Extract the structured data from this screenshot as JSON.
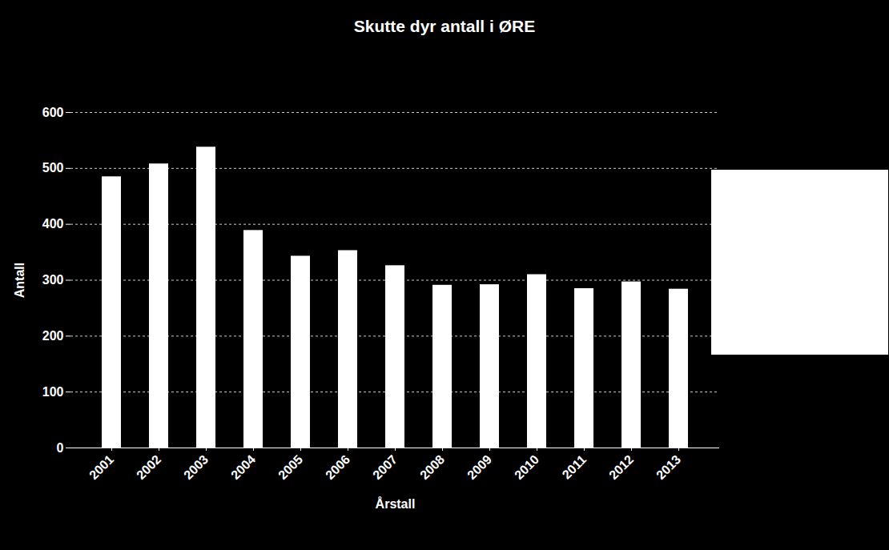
{
  "chart_data": {
    "type": "bar",
    "title": "Skutte dyr antall i ØRE",
    "x_label": "Årstall",
    "y_label": "Antall",
    "categories": [
      "2001",
      "2002",
      "2003",
      "2004",
      "2005",
      "2006",
      "2007",
      "2008",
      "2009",
      "2010",
      "2011",
      "2012",
      "2013"
    ],
    "values": [
      485,
      508,
      538,
      389,
      343,
      353,
      326,
      291,
      292,
      310,
      285,
      297,
      284
    ],
    "color": "#ffffff",
    "ylim": [
      0,
      600
    ],
    "yticks": [
      0,
      100,
      200,
      300,
      400,
      500,
      600
    ],
    "grid": true
  }
}
